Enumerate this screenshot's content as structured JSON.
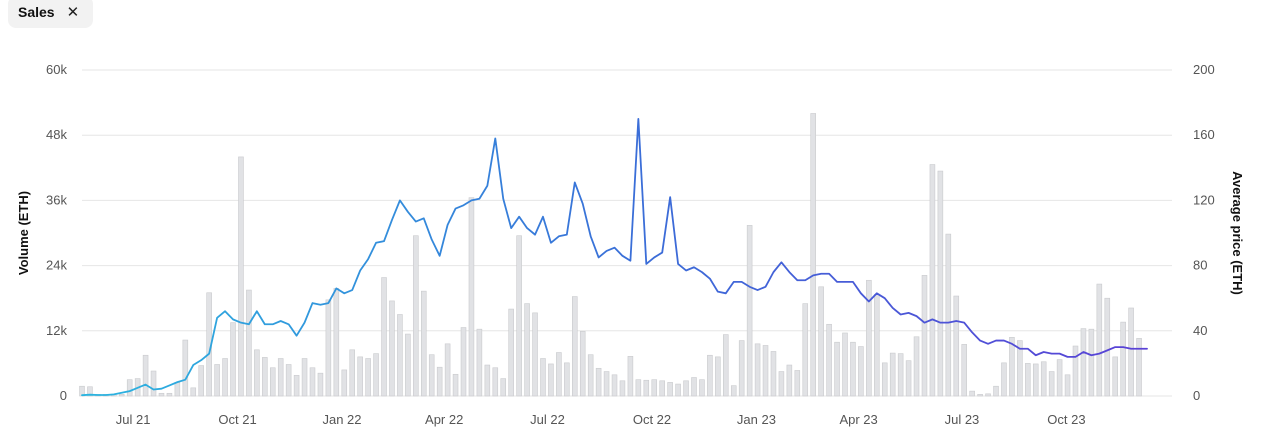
{
  "filter_chip": {
    "label": "Sales",
    "close_icon": "close-icon"
  },
  "chart_data": {
    "type": "bar+line",
    "title": "",
    "y_left_label": "Volume (ETH)",
    "y_right_label": "Average price (ETH)",
    "y_left_range": [
      0,
      60000
    ],
    "y_right_range": [
      0,
      200
    ],
    "y_left_ticks": [
      "0",
      "12k",
      "24k",
      "36k",
      "48k",
      "60k"
    ],
    "y_right_ticks": [
      "0",
      "40",
      "80",
      "120",
      "160",
      "200"
    ],
    "x_range": [
      "2021-05-17",
      "2024-01-02"
    ],
    "x_ticks": [
      {
        "label": "Jul 21",
        "date": "2021-07-01"
      },
      {
        "label": "Oct 21",
        "date": "2021-10-01"
      },
      {
        "label": "Jan 22",
        "date": "2022-01-01"
      },
      {
        "label": "Apr 22",
        "date": "2022-04-01"
      },
      {
        "label": "Jul 22",
        "date": "2022-07-01"
      },
      {
        "label": "Oct 22",
        "date": "2022-10-01"
      },
      {
        "label": "Jan 23",
        "date": "2023-01-01"
      },
      {
        "label": "Apr 23",
        "date": "2023-04-01"
      },
      {
        "label": "Jul 23",
        "date": "2023-07-01"
      },
      {
        "label": "Oct 23",
        "date": "2023-10-01"
      }
    ],
    "grid": true,
    "colors": {
      "bars": "#e1e2e5",
      "bar_stroke": "#c9cacd",
      "line_start": "#2bb5e0",
      "line_mid": "#3a6fd8",
      "line_end": "#5b3fd6",
      "grid": "#e6e6e6"
    },
    "volume_series": {
      "name": "Volume (ETH)",
      "start_date": "2021-05-17",
      "interval_days": 7,
      "values": [
        1800,
        1700,
        300,
        300,
        300,
        300,
        3000,
        3200,
        7500,
        4600,
        500,
        500,
        2500,
        10300,
        1500,
        5600,
        19000,
        5800,
        6900,
        13500,
        44000,
        19500,
        8500,
        7100,
        5200,
        6900,
        5800,
        3800,
        6900,
        5200,
        4200,
        17700,
        19800,
        4800,
        8500,
        7200,
        6900,
        7800,
        21800,
        17500,
        15000,
        11400,
        29500,
        19300,
        7600,
        5300,
        9600,
        4000,
        12600,
        36500,
        12300,
        5700,
        5200,
        3200,
        16000,
        29500,
        17000,
        15300,
        6900,
        5900,
        8000,
        6100,
        18300,
        11900,
        7600,
        5100,
        4500,
        3900,
        2800,
        7300,
        3000,
        2900,
        3000,
        2800,
        2500,
        2200,
        2800,
        3400,
        3000,
        7500,
        7200,
        11300,
        1900,
        10200,
        31400,
        9600,
        9300,
        8200,
        4500,
        5700,
        4700,
        17000,
        52000,
        20100,
        13200,
        9900,
        11600,
        9900,
        9100,
        21300,
        18700,
        6100,
        7900,
        7800,
        6500,
        10900,
        22200,
        42600,
        41400,
        29800,
        18400,
        9500,
        900,
        300,
        400,
        1800,
        6100,
        10800,
        10200,
        6000,
        5900,
        6300,
        4500,
        6700,
        3900,
        9200,
        12400,
        12300,
        20600,
        18000,
        7200,
        13600,
        16200,
        10600
      ]
    },
    "price_series": {
      "name": "Average price (ETH)",
      "start_date": "2021-05-17",
      "interval_days": 7,
      "values": [
        0.5,
        0.8,
        0.6,
        0.6,
        1,
        2,
        3,
        5,
        7,
        4,
        4.5,
        6.5,
        8.5,
        10,
        19,
        22,
        26,
        48,
        52,
        47,
        45,
        44,
        52,
        44,
        44,
        46,
        44,
        37,
        45,
        57,
        56,
        57,
        66,
        63,
        65,
        77,
        84,
        94,
        95,
        108,
        120,
        113,
        107,
        109,
        96,
        86,
        105,
        115,
        117,
        120,
        121,
        129,
        158,
        121,
        103,
        110,
        103,
        99,
        110,
        94,
        98,
        99,
        131,
        118,
        98,
        85,
        89,
        91,
        86,
        83,
        170,
        81,
        85,
        88,
        122,
        81,
        77,
        79,
        76,
        72,
        64,
        63,
        70,
        70,
        67,
        65,
        67,
        76,
        82,
        76,
        71,
        71,
        74,
        75,
        75,
        70,
        70,
        70,
        63,
        58,
        63,
        60,
        54,
        50,
        51,
        49,
        45,
        47,
        45,
        45,
        46,
        45,
        39,
        34,
        32,
        34,
        34,
        32,
        29,
        29,
        25,
        27,
        26,
        26,
        24,
        24,
        27,
        25,
        26,
        28,
        30,
        30,
        29,
        29,
        29
      ]
    }
  }
}
